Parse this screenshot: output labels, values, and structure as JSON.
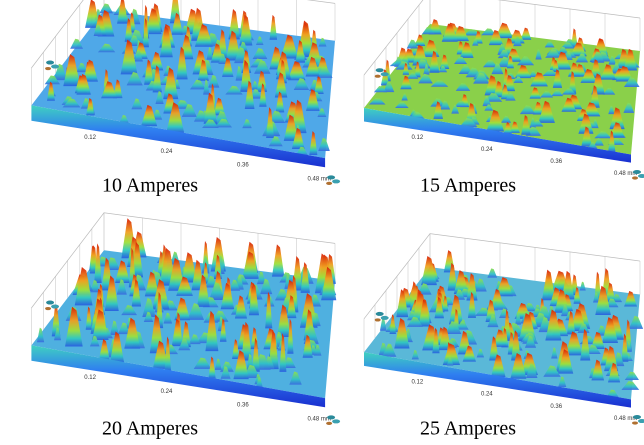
{
  "panels": [
    {
      "caption": "10 Amperes",
      "axis_ticks": [
        "0.12",
        "0.24",
        "0.36",
        "0.48 mm"
      ]
    },
    {
      "caption": "15 Amperes",
      "axis_ticks": [
        "0.12",
        "0.24",
        "0.36",
        "0.48 mm"
      ]
    },
    {
      "caption": "20 Amperes",
      "axis_ticks": [
        "0.12",
        "0.24",
        "0.36",
        "0.48 mm"
      ]
    },
    {
      "caption": "25 Amperes",
      "axis_ticks": [
        "0.12",
        "0.24",
        "0.36",
        "0.48 mm"
      ]
    }
  ]
}
